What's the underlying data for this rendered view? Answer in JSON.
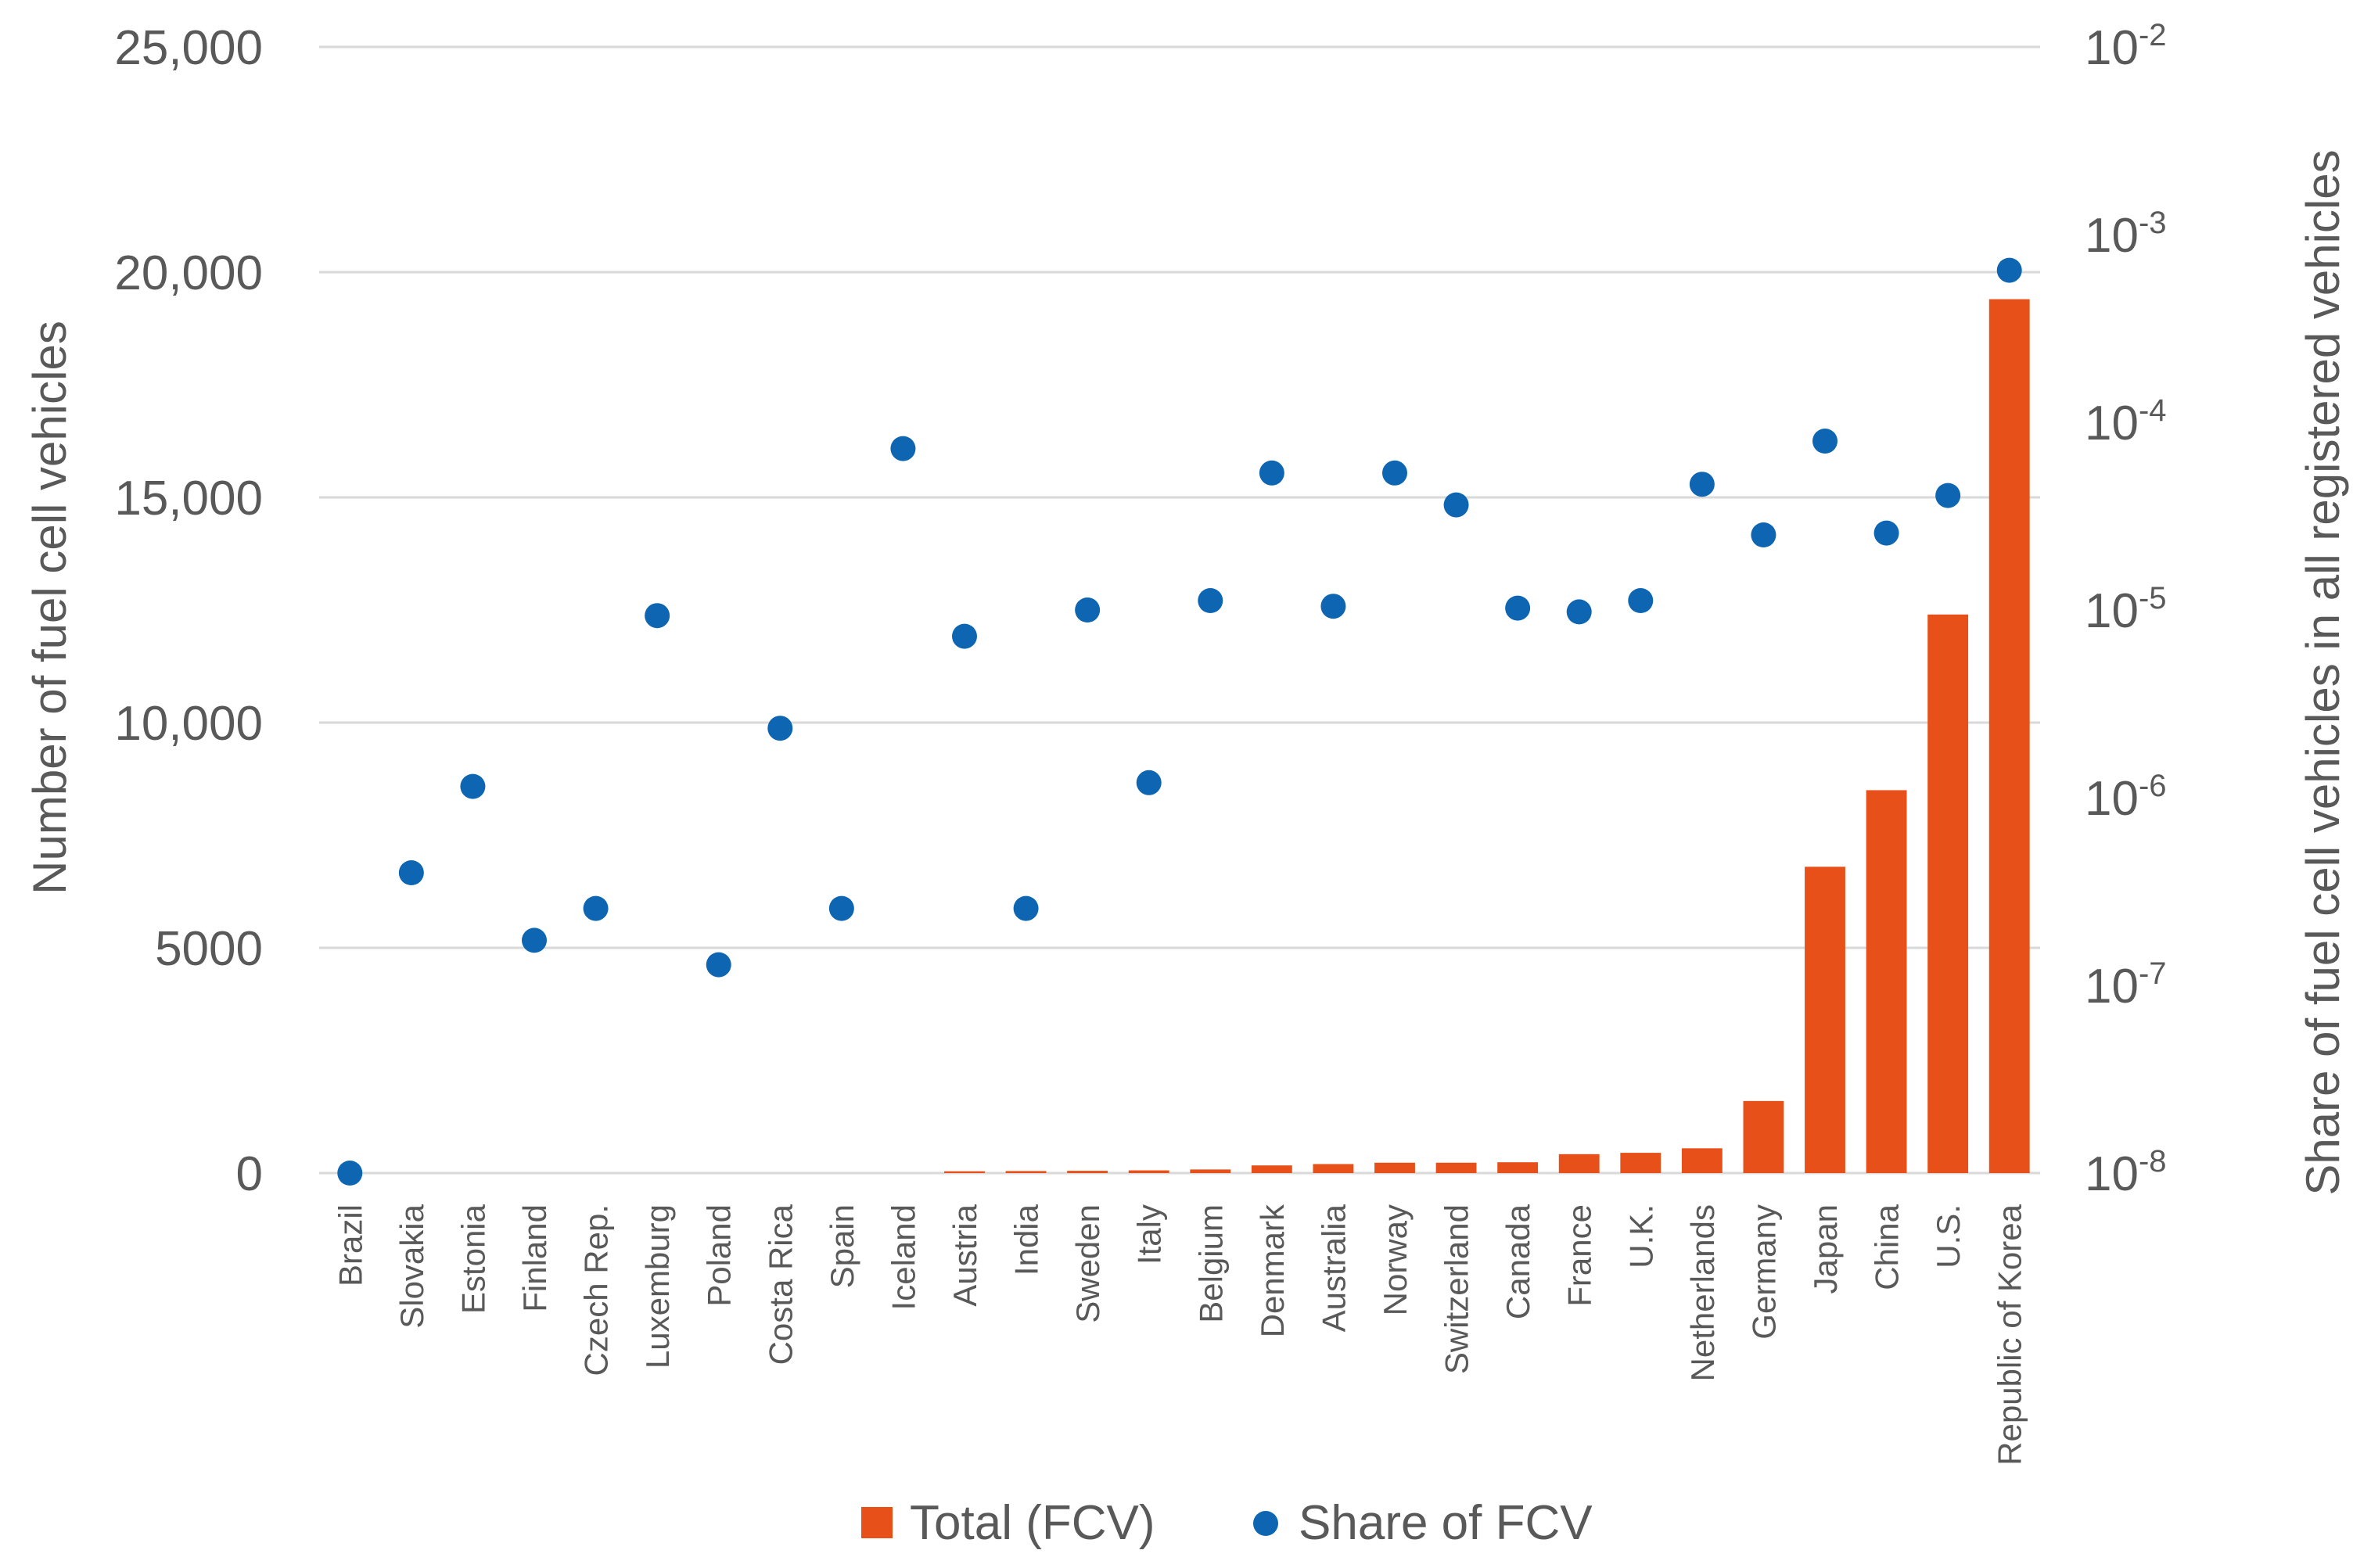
{
  "colors": {
    "bar": "#E8501A",
    "dot": "#0E66B3",
    "grid": "#D9D9D9",
    "text": "#595959"
  },
  "chart_data": {
    "type": "bar",
    "categories": [
      "Brazil",
      "Slovakia",
      "Estonia",
      "Finland",
      "Czech Rep.",
      "Luxemburg",
      "Poland",
      "Costa Rica",
      "Spain",
      "Iceland",
      "Austria",
      "India",
      "Sweden",
      "Italy",
      "Belgium",
      "Denmark",
      "Australia",
      "Norway",
      "Switzerland",
      "Canada",
      "France",
      "U.K.",
      "Netherlands",
      "Germany",
      "Japan",
      "China",
      "U.S.",
      "Republic of Korea"
    ],
    "series": [
      {
        "name": "Total (FCV)",
        "type": "bar",
        "axis": "left",
        "values": [
          0,
          0,
          0,
          0,
          0,
          0,
          0,
          0,
          0,
          0,
          40,
          45,
          50,
          60,
          80,
          170,
          200,
          230,
          230,
          240,
          420,
          450,
          550,
          1600,
          6800,
          8500,
          12400,
          19400
        ]
      },
      {
        "name": "Share of FCV",
        "type": "scatter",
        "axis": "right",
        "log10_values": true,
        "values": [
          -8.0,
          -6.4,
          -5.94,
          -6.76,
          -6.59,
          -5.03,
          -6.89,
          -5.63,
          -6.59,
          -4.14,
          -5.14,
          -6.59,
          -5.0,
          -5.92,
          -4.95,
          -4.27,
          -4.98,
          -4.27,
          -4.44,
          -4.99,
          -5.01,
          -4.95,
          -4.33,
          -4.6,
          -4.1,
          -4.59,
          -4.39,
          -3.19
        ]
      }
    ],
    "y_left": {
      "label": "Number of fuel cell vehicles",
      "ylim": [
        0,
        25000
      ],
      "ticks": [
        0,
        5000,
        10000,
        15000,
        20000,
        25000
      ],
      "tick_labels": [
        "0",
        "5000",
        "10,000",
        "15,000",
        "20,000",
        "25,000"
      ]
    },
    "y_right": {
      "label": "Share of fuel cell vehicles in all registered vehicles",
      "scale": "log",
      "ylim": [
        -8,
        -2
      ],
      "ticks": [
        -8,
        -7,
        -6,
        -5,
        -4,
        -3,
        -2
      ],
      "tick_bases": [
        "10",
        "10",
        "10",
        "10",
        "10",
        "10",
        "10"
      ],
      "tick_exps": [
        "-8",
        "-7",
        "-6",
        "-5",
        "-4",
        "-3",
        "-2"
      ]
    },
    "legend": {
      "placement": "bottom-center",
      "items": [
        "Total (FCV)",
        "Share of FCV"
      ]
    },
    "grid": true
  }
}
